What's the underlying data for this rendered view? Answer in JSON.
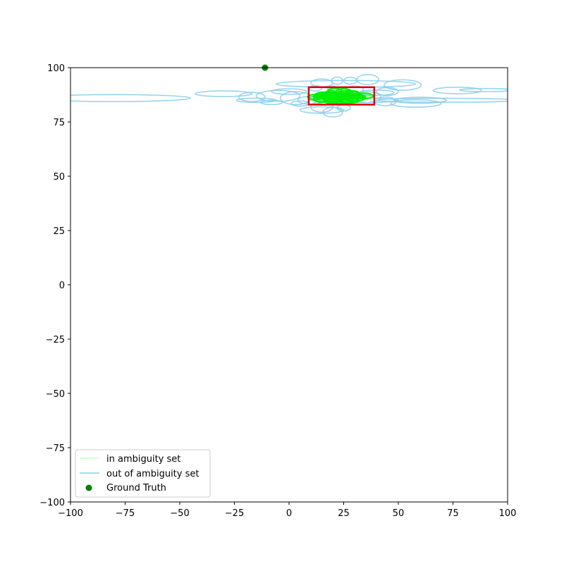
{
  "chart_data": {
    "type": "scatter",
    "xlim": [
      -100,
      100
    ],
    "ylim": [
      -100,
      100
    ],
    "xticks": [
      "−100",
      "−75",
      "−50",
      "−25",
      "0",
      "25",
      "50",
      "75",
      "100"
    ],
    "yticks": [
      "−100",
      "−75",
      "−50",
      "−25",
      "0",
      "25",
      "50",
      "75",
      "100"
    ],
    "grid": false,
    "legend_placement": "lower-left",
    "legend": [
      {
        "label": "in ambiguity set",
        "kind": "line",
        "color": "#ccffcc"
      },
      {
        "label": "out of ambiguity set",
        "kind": "line",
        "color": "#87ceeb"
      },
      {
        "label": "Ground Truth",
        "kind": "dot",
        "color": "#008000"
      }
    ],
    "colors": {
      "in_set": "#00ee00",
      "in_set_light": "#ccffcc",
      "out_set": "#87ceeb",
      "ground_truth": "#008000",
      "region": "#dd0000"
    },
    "ground_truth": {
      "x": -11,
      "y": 100
    },
    "region_box": {
      "x0": 9,
      "x1": 39,
      "y0": 83,
      "y1": 91
    },
    "out_ellipses": [
      {
        "cx": -80,
        "cy": 86,
        "rx": 35,
        "ry": 1.6
      },
      {
        "cx": -30,
        "cy": 88,
        "rx": 13,
        "ry": 1.3
      },
      {
        "cx": -17,
        "cy": 86.5,
        "rx": 6,
        "ry": 2.1
      },
      {
        "cx": -15,
        "cy": 85,
        "rx": 9,
        "ry": 1.0
      },
      {
        "cx": -5,
        "cy": 87,
        "rx": 10,
        "ry": 2.5
      },
      {
        "cx": 0,
        "cy": 89,
        "rx": 8,
        "ry": 1.3
      },
      {
        "cx": 3,
        "cy": 86,
        "rx": 7,
        "ry": 3.0
      },
      {
        "cx": 10,
        "cy": 85,
        "rx": 6,
        "ry": 1.8
      },
      {
        "cx": 15,
        "cy": 82,
        "rx": 5,
        "ry": 2.5
      },
      {
        "cx": 15,
        "cy": 80.5,
        "rx": 10,
        "ry": 1.5
      },
      {
        "cx": 20,
        "cy": 79.5,
        "rx": 4.5,
        "ry": 2.2
      },
      {
        "cx": 25,
        "cy": 81.5,
        "rx": 3,
        "ry": 1.5
      },
      {
        "cx": 26,
        "cy": 92.5,
        "rx": 32,
        "ry": 1.6
      },
      {
        "cx": 15,
        "cy": 93,
        "rx": 5,
        "ry": 1.8
      },
      {
        "cx": 22,
        "cy": 94,
        "rx": 2.5,
        "ry": 1.7
      },
      {
        "cx": 28,
        "cy": 94,
        "rx": 3,
        "ry": 1.6
      },
      {
        "cx": 36,
        "cy": 94.5,
        "rx": 5,
        "ry": 2.3
      },
      {
        "cx": 52,
        "cy": 92,
        "rx": 8.5,
        "ry": 2.4
      },
      {
        "cx": 45,
        "cy": 89,
        "rx": 5,
        "ry": 1.8
      },
      {
        "cx": 60,
        "cy": 85,
        "rx": 12,
        "ry": 1.4
      },
      {
        "cx": 58,
        "cy": 83.5,
        "rx": 11.5,
        "ry": 1.7
      },
      {
        "cx": 77,
        "cy": 89.5,
        "rx": 11,
        "ry": 1.5
      },
      {
        "cx": 72,
        "cy": 85,
        "rx": 32,
        "ry": 0.9
      },
      {
        "cx": 90,
        "cy": 89.7,
        "rx": 12,
        "ry": 0.7
      },
      {
        "cx": 30,
        "cy": 85,
        "rx": 20,
        "ry": 1.1
      },
      {
        "cx": 35,
        "cy": 86.5,
        "rx": 7,
        "ry": 2.5
      },
      {
        "cx": 44,
        "cy": 84.5,
        "rx": 5,
        "ry": 2.0
      },
      {
        "cx": 40,
        "cy": 88.5,
        "rx": 8,
        "ry": 1.2
      },
      {
        "cx": 5,
        "cy": 83.5,
        "rx": 4,
        "ry": 1.2
      },
      {
        "cx": 20,
        "cy": 88,
        "rx": 3,
        "ry": 3.5
      },
      {
        "cx": 30,
        "cy": 90,
        "rx": 4,
        "ry": 1.5
      },
      {
        "cx": 12,
        "cy": 90.5,
        "rx": 3,
        "ry": 1.2
      },
      {
        "cx": -8,
        "cy": 84,
        "rx": 5,
        "ry": 1.0
      }
    ],
    "in_ellipses": [
      {
        "cx": 22,
        "cy": 87,
        "rx": 10,
        "ry": 1.6
      },
      {
        "cx": 24,
        "cy": 86,
        "rx": 8,
        "ry": 2.5
      },
      {
        "cx": 20,
        "cy": 86.5,
        "rx": 5,
        "ry": 2.2
      },
      {
        "cx": 27,
        "cy": 87.5,
        "rx": 6,
        "ry": 1.9
      },
      {
        "cx": 18,
        "cy": 85.5,
        "rx": 7,
        "ry": 1.5
      },
      {
        "cx": 25,
        "cy": 88.5,
        "rx": 4,
        "ry": 1.8
      },
      {
        "cx": 30,
        "cy": 86,
        "rx": 5,
        "ry": 1.4
      },
      {
        "cx": 16,
        "cy": 87.5,
        "rx": 4,
        "ry": 1.3
      },
      {
        "cx": 22,
        "cy": 84.5,
        "rx": 6,
        "ry": 1.2
      },
      {
        "cx": 28,
        "cy": 84.8,
        "rx": 4,
        "ry": 1.1
      },
      {
        "cx": 34,
        "cy": 87,
        "rx": 4.5,
        "ry": 1.3
      },
      {
        "cx": 12,
        "cy": 86.5,
        "rx": 3.5,
        "ry": 1.2
      },
      {
        "cx": 21,
        "cy": 89.5,
        "rx": 3,
        "ry": 1.0
      },
      {
        "cx": 26,
        "cy": 85.5,
        "rx": 3,
        "ry": 2.0
      },
      {
        "cx": 19,
        "cy": 88,
        "rx": 2.5,
        "ry": 1.5
      },
      {
        "cx": 23,
        "cy": 86.8,
        "rx": 12,
        "ry": 1.0
      },
      {
        "cx": 29,
        "cy": 88.2,
        "rx": 3,
        "ry": 1.2
      },
      {
        "cx": 15,
        "cy": 85,
        "rx": 3,
        "ry": 1.0
      }
    ]
  }
}
